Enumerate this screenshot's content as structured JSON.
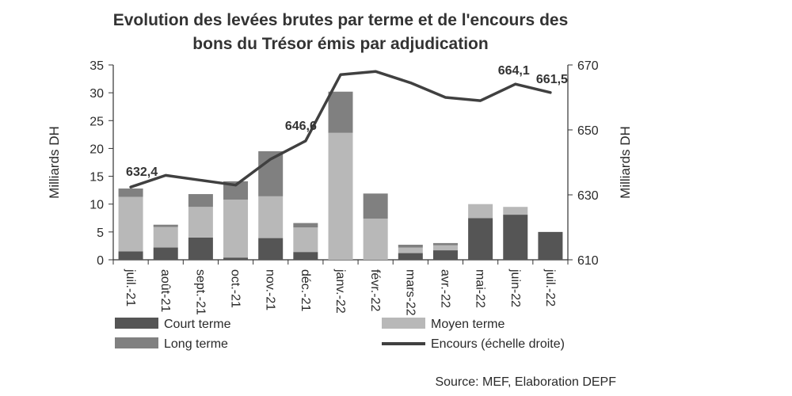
{
  "chart_data": {
    "type": "bar",
    "title_lines": [
      "Evolution des levées brutes par terme et de l'encours des",
      "bons du Trésor émis par adjudication"
    ],
    "categories": [
      "juil.-21",
      "août-21",
      "sept.-21",
      "oct.-21",
      "nov.-21",
      "déc.-21",
      "janv.-22",
      "févr.-22",
      "mars-22",
      "avr.-22",
      "mai-22",
      "juin-22",
      "juil.-22"
    ],
    "ylabel": "Milliards DH",
    "y2label": "Milliards DH",
    "ylim": [
      0,
      35
    ],
    "y2lim": [
      610,
      670
    ],
    "y_ticks": [
      0,
      5,
      10,
      15,
      20,
      25,
      30,
      35
    ],
    "y2_ticks": [
      610,
      630,
      650,
      670
    ],
    "stacked": true,
    "series": [
      {
        "name": "Court terme",
        "type": "bar",
        "color": "#555555",
        "values": [
          1.5,
          2.2,
          4.0,
          0.4,
          3.9,
          1.4,
          0.0,
          0.0,
          1.2,
          1.7,
          7.5,
          8.1,
          5.0
        ]
      },
      {
        "name": "Moyen terme",
        "type": "bar",
        "color": "#b8b8b8",
        "values": [
          9.8,
          3.7,
          5.5,
          10.4,
          7.5,
          4.4,
          22.8,
          7.4,
          1.0,
          0.9,
          2.5,
          1.4,
          0.0
        ]
      },
      {
        "name": "Long terme",
        "type": "bar",
        "color": "#808080",
        "values": [
          1.5,
          0.4,
          2.3,
          3.3,
          8.1,
          0.8,
          7.4,
          4.5,
          0.5,
          0.4,
          0.0,
          0.0,
          0.0
        ]
      },
      {
        "name": "Encours (échelle droite)",
        "type": "line",
        "axis": "right",
        "color": "#404040",
        "values": [
          632.4,
          636.0,
          634.5,
          633.0,
          641.0,
          646.6,
          667.0,
          668.0,
          664.5,
          660.0,
          659.0,
          664.1,
          661.5
        ]
      }
    ],
    "annotations": [
      {
        "index": 0,
        "text": "632,4"
      },
      {
        "index": 5,
        "text": "646,6"
      },
      {
        "index": 11,
        "text": "664,1"
      },
      {
        "index": 12,
        "text": "661,5"
      }
    ],
    "legend_position": "bottom",
    "grid": false,
    "source": "Source: MEF, Elaboration DEPF"
  }
}
